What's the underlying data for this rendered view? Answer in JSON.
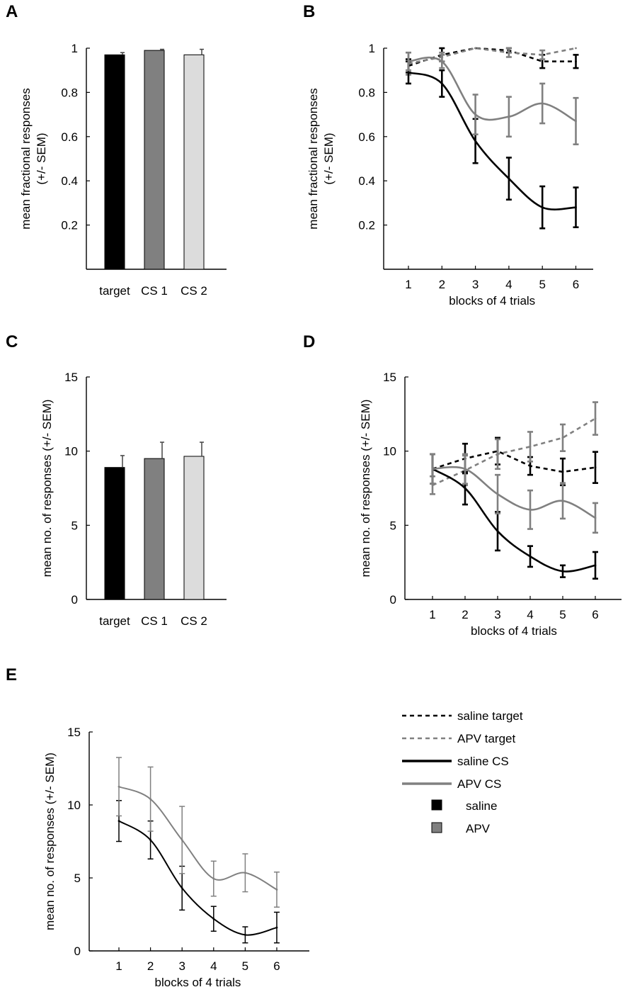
{
  "colors": {
    "saline": "#000000",
    "apv": "#808080",
    "bar_target": "#000000",
    "bar_cs1": "#808080",
    "bar_cs2": "#dcdcdc"
  },
  "chart_data": [
    {
      "panel": "A",
      "type": "bar",
      "ylabel_lines": [
        "mean fractional responses",
        "(+/- SEM)"
      ],
      "ylim": [
        0,
        1
      ],
      "yticks": [
        "0.2",
        "0.4",
        "0.6",
        "0.8",
        "1"
      ],
      "ytick_values": [
        0.2,
        0.4,
        0.6,
        0.8,
        1
      ],
      "categories": [
        "target",
        "CS 1",
        "CS 2"
      ],
      "values": [
        0.97,
        0.99,
        0.97
      ],
      "errors": [
        0.01,
        0.005,
        0.025
      ]
    },
    {
      "panel": "B",
      "type": "line",
      "xlabel": "blocks of 4 trials",
      "ylabel_lines": [
        "mean fractional responses",
        "(+/- SEM)"
      ],
      "ylim": [
        0,
        1
      ],
      "yticks": [
        "0.2",
        "0.4",
        "0.6",
        "0.8",
        "1"
      ],
      "ytick_values": [
        0.2,
        0.4,
        0.6,
        0.8,
        1
      ],
      "x": [
        1,
        2,
        3,
        4,
        5,
        6
      ],
      "xticks": [
        "1",
        "2",
        "3",
        "4",
        "5",
        "6"
      ],
      "series": [
        {
          "name": "saline target",
          "group": "saline",
          "dash": true,
          "values": [
            0.92,
            0.97,
            1.0,
            0.99,
            0.94,
            0.94
          ],
          "errors": [
            0.03,
            0.03,
            0.0,
            0.01,
            0.03,
            0.03
          ]
        },
        {
          "name": "APV target",
          "group": "apv",
          "dash": true,
          "values": [
            0.93,
            0.96,
            1.0,
            0.98,
            0.97,
            1.0
          ],
          "errors": [
            0.05,
            0.02,
            0.0,
            0.02,
            0.02,
            0.0
          ]
        },
        {
          "name": "saline CS",
          "group": "saline",
          "dash": false,
          "values": [
            0.89,
            0.84,
            0.58,
            0.41,
            0.28,
            0.28
          ],
          "errors": [
            0.05,
            0.06,
            0.1,
            0.095,
            0.095,
            0.09
          ]
        },
        {
          "name": "APV CS",
          "group": "apv",
          "dash": false,
          "values": [
            0.94,
            0.94,
            0.7,
            0.69,
            0.75,
            0.67
          ],
          "errors": [
            0.04,
            0.03,
            0.09,
            0.09,
            0.09,
            0.105
          ]
        }
      ]
    },
    {
      "panel": "C",
      "type": "bar",
      "ylabel_lines": [
        "mean no. of responses (+/- SEM)"
      ],
      "ylim": [
        0,
        15
      ],
      "yticks": [
        "0",
        "5",
        "10",
        "15"
      ],
      "ytick_values": [
        0,
        5,
        10,
        15
      ],
      "categories": [
        "target",
        "CS 1",
        "CS 2"
      ],
      "values": [
        8.9,
        9.5,
        9.65
      ],
      "errors": [
        0.8,
        1.1,
        0.95
      ]
    },
    {
      "panel": "D",
      "type": "line",
      "xlabel": "blocks of 4 trials",
      "ylabel_lines": [
        "mean no. of responses (+/- SEM)"
      ],
      "ylim": [
        0,
        15
      ],
      "yticks": [
        "0",
        "5",
        "10",
        "15"
      ],
      "ytick_values": [
        0,
        5,
        10,
        15
      ],
      "x": [
        1,
        2,
        3,
        4,
        5,
        6
      ],
      "xticks": [
        "1",
        "2",
        "3",
        "4",
        "5",
        "6"
      ],
      "series": [
        {
          "name": "saline target",
          "group": "saline",
          "dash": true,
          "values": [
            8.8,
            9.5,
            10.0,
            9.0,
            8.6,
            8.9
          ],
          "errors": [
            1.0,
            1.0,
            0.9,
            0.6,
            0.9,
            1.05
          ]
        },
        {
          "name": "APV target",
          "group": "apv",
          "dash": true,
          "values": [
            7.7,
            8.7,
            9.8,
            10.3,
            10.9,
            12.2
          ],
          "errors": [
            0.6,
            1.0,
            1.0,
            1.0,
            0.9,
            1.1
          ]
        },
        {
          "name": "saline CS",
          "group": "saline",
          "dash": false,
          "values": [
            8.8,
            7.5,
            4.6,
            2.9,
            1.9,
            2.3
          ],
          "errors": [
            1.0,
            1.1,
            1.3,
            0.7,
            0.4,
            0.9
          ]
        },
        {
          "name": "APV CS",
          "group": "apv",
          "dash": false,
          "values": [
            8.8,
            8.8,
            7.1,
            6.05,
            6.65,
            5.5
          ],
          "errors": [
            1.0,
            1.0,
            1.3,
            1.3,
            1.2,
            1.0
          ]
        }
      ]
    },
    {
      "panel": "E",
      "type": "line",
      "xlabel": "blocks of 4 trials",
      "ylabel_lines": [
        "mean no. of responses (+/- SEM)"
      ],
      "ylim": [
        0,
        15
      ],
      "yticks": [
        "0",
        "5",
        "10",
        "15"
      ],
      "ytick_values": [
        0,
        5,
        10,
        15
      ],
      "x": [
        1,
        2,
        3,
        4,
        5,
        6
      ],
      "xticks": [
        "1",
        "2",
        "3",
        "4",
        "5",
        "6"
      ],
      "series": [
        {
          "name": "saline",
          "group": "saline",
          "dash": false,
          "thin": true,
          "values": [
            8.9,
            7.6,
            4.3,
            2.2,
            1.1,
            1.6
          ],
          "errors": [
            1.4,
            1.3,
            1.5,
            0.85,
            0.55,
            1.05
          ]
        },
        {
          "name": "APV",
          "group": "apv",
          "dash": false,
          "thin": true,
          "values": [
            11.25,
            10.4,
            7.6,
            4.95,
            5.35,
            4.2
          ],
          "errors": [
            2.0,
            2.2,
            2.3,
            1.2,
            1.3,
            1.2
          ]
        }
      ]
    }
  ],
  "legend": [
    {
      "label": "saline target",
      "group": "saline",
      "kind": "dash"
    },
    {
      "label": "APV target",
      "group": "apv",
      "kind": "dash"
    },
    {
      "label": "saline CS",
      "group": "saline",
      "kind": "line"
    },
    {
      "label": "APV CS",
      "group": "apv",
      "kind": "line"
    },
    {
      "label": "saline",
      "group": "saline",
      "kind": "square"
    },
    {
      "label": "APV",
      "group": "apv",
      "kind": "square"
    }
  ]
}
